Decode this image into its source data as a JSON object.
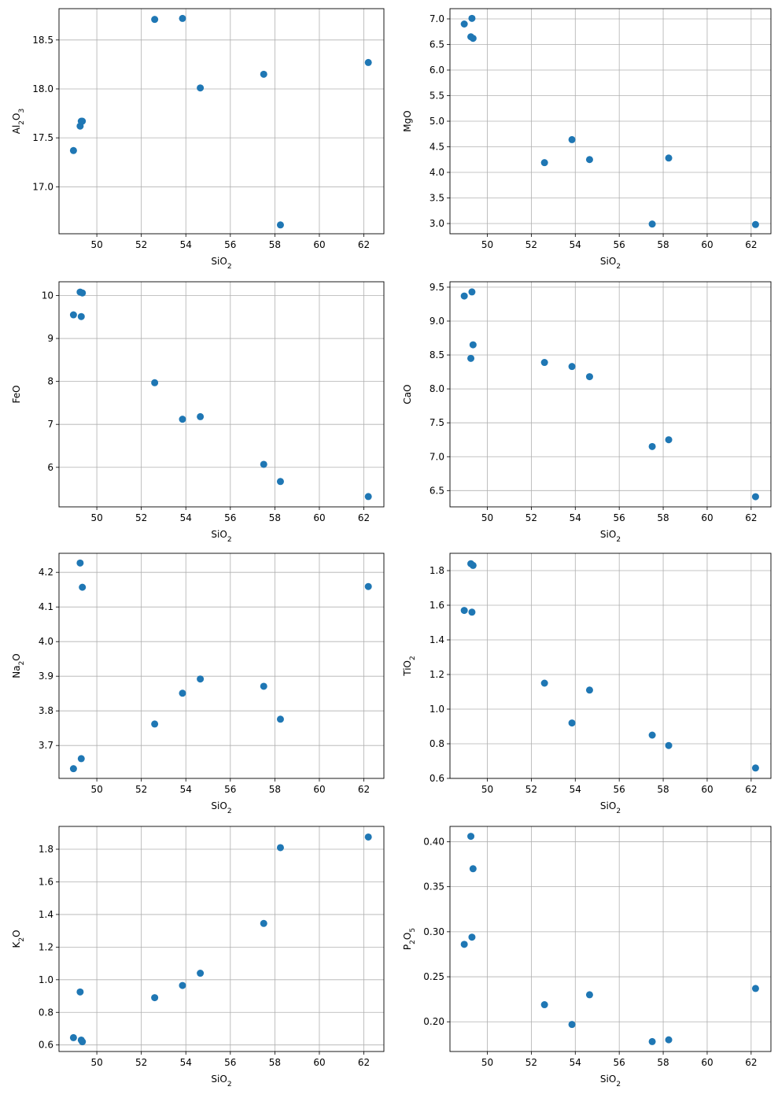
{
  "chart_data": [
    {
      "type": "scatter",
      "xlabel": "SiO₂",
      "ylabel": "Al₂O₃",
      "xlim": [
        48.3,
        62.9
      ],
      "ylim": [
        16.52,
        18.82
      ],
      "xticks": [
        50,
        52,
        54,
        56,
        58,
        60,
        62
      ],
      "yticks": [
        17.0,
        17.5,
        18.0,
        18.5
      ],
      "xtick_labels": [
        "50",
        "52",
        "54",
        "56",
        "58",
        "60",
        "62"
      ],
      "ytick_labels": [
        "17.0",
        "17.5",
        "18.0",
        "18.5"
      ],
      "grid": true,
      "series": [
        {
          "x": [
            48.95,
            49.25,
            49.3,
            49.35,
            52.6,
            53.85,
            54.65,
            57.5,
            58.25,
            62.2
          ],
          "y": [
            17.37,
            17.62,
            17.67,
            17.67,
            18.71,
            18.72,
            18.01,
            18.15,
            16.61,
            18.27
          ],
          "color": "#1f77b4"
        }
      ]
    },
    {
      "type": "scatter",
      "xlabel": "SiO₂",
      "ylabel": "MgO",
      "xlim": [
        48.3,
        62.9
      ],
      "ylim": [
        2.8,
        7.2
      ],
      "xticks": [
        50,
        52,
        54,
        56,
        58,
        60,
        62
      ],
      "yticks": [
        3.0,
        3.5,
        4.0,
        4.5,
        5.0,
        5.5,
        6.0,
        6.5,
        7.0
      ],
      "xtick_labels": [
        "50",
        "52",
        "54",
        "56",
        "58",
        "60",
        "62"
      ],
      "ytick_labels": [
        "3.0",
        "3.5",
        "4.0",
        "4.5",
        "5.0",
        "5.5",
        "6.0",
        "6.5",
        "7.0"
      ],
      "grid": true,
      "series": [
        {
          "x": [
            48.95,
            49.25,
            49.3,
            49.35,
            52.6,
            53.85,
            54.65,
            57.5,
            58.25,
            62.2
          ],
          "y": [
            6.9,
            6.65,
            7.01,
            6.62,
            4.19,
            4.64,
            4.25,
            2.99,
            4.28,
            2.98
          ],
          "color": "#1f77b4"
        }
      ]
    },
    {
      "type": "scatter",
      "xlabel": "SiO₂",
      "ylabel": "FeO",
      "xlim": [
        48.3,
        62.9
      ],
      "ylim": [
        5.08,
        10.32
      ],
      "xticks": [
        50,
        52,
        54,
        56,
        58,
        60,
        62
      ],
      "yticks": [
        6,
        7,
        8,
        9,
        10
      ],
      "xtick_labels": [
        "50",
        "52",
        "54",
        "56",
        "58",
        "60",
        "62"
      ],
      "ytick_labels": [
        "6",
        "7",
        "8",
        "9",
        "10"
      ],
      "grid": true,
      "series": [
        {
          "x": [
            48.95,
            49.25,
            49.3,
            49.35,
            52.6,
            53.85,
            54.65,
            57.5,
            58.25,
            62.2
          ],
          "y": [
            9.55,
            10.08,
            9.51,
            10.06,
            7.97,
            7.12,
            7.18,
            6.07,
            5.67,
            5.32
          ],
          "color": "#1f77b4"
        }
      ]
    },
    {
      "type": "scatter",
      "xlabel": "SiO₂",
      "ylabel": "CaO",
      "xlim": [
        48.3,
        62.9
      ],
      "ylim": [
        6.26,
        9.58
      ],
      "xticks": [
        50,
        52,
        54,
        56,
        58,
        60,
        62
      ],
      "yticks": [
        6.5,
        7.0,
        7.5,
        8.0,
        8.5,
        9.0,
        9.5
      ],
      "xtick_labels": [
        "50",
        "52",
        "54",
        "56",
        "58",
        "60",
        "62"
      ],
      "ytick_labels": [
        "6.5",
        "7.0",
        "7.5",
        "8.0",
        "8.5",
        "9.0",
        "9.5"
      ],
      "grid": true,
      "series": [
        {
          "x": [
            48.95,
            49.25,
            49.3,
            49.35,
            52.6,
            53.85,
            54.65,
            57.5,
            58.25,
            62.2
          ],
          "y": [
            9.37,
            8.45,
            9.43,
            8.65,
            8.39,
            8.33,
            8.18,
            7.15,
            7.25,
            6.41
          ],
          "color": "#1f77b4"
        }
      ]
    },
    {
      "type": "scatter",
      "xlabel": "SiO₂",
      "ylabel": "Na₂O",
      "xlim": [
        48.3,
        62.9
      ],
      "ylim": [
        3.605,
        4.255
      ],
      "xticks": [
        50,
        52,
        54,
        56,
        58,
        60,
        62
      ],
      "yticks": [
        3.7,
        3.8,
        3.9,
        4.0,
        4.1,
        4.2
      ],
      "xtick_labels": [
        "50",
        "52",
        "54",
        "56",
        "58",
        "60",
        "62"
      ],
      "ytick_labels": [
        "3.7",
        "3.8",
        "3.9",
        "4.0",
        "4.1",
        "4.2"
      ],
      "grid": true,
      "series": [
        {
          "x": [
            48.95,
            49.25,
            49.3,
            49.35,
            52.6,
            53.85,
            54.65,
            57.5,
            58.25,
            62.2
          ],
          "y": [
            3.633,
            4.227,
            3.662,
            4.157,
            3.762,
            3.851,
            3.892,
            3.871,
            3.776,
            4.159
          ],
          "color": "#1f77b4"
        }
      ]
    },
    {
      "type": "scatter",
      "xlabel": "SiO₂",
      "ylabel": "TiO₂",
      "xlim": [
        48.3,
        62.9
      ],
      "ylim": [
        0.6,
        1.9
      ],
      "xticks": [
        50,
        52,
        54,
        56,
        58,
        60,
        62
      ],
      "yticks": [
        0.6,
        0.8,
        1.0,
        1.2,
        1.4,
        1.6,
        1.8
      ],
      "xtick_labels": [
        "50",
        "52",
        "54",
        "56",
        "58",
        "60",
        "62"
      ],
      "ytick_labels": [
        "0.6",
        "0.8",
        "1.0",
        "1.2",
        "1.4",
        "1.6",
        "1.8"
      ],
      "grid": true,
      "series": [
        {
          "x": [
            48.95,
            49.25,
            49.3,
            49.35,
            52.6,
            53.85,
            54.65,
            57.5,
            58.25,
            62.2
          ],
          "y": [
            1.57,
            1.84,
            1.56,
            1.83,
            1.15,
            0.92,
            1.11,
            0.85,
            0.79,
            0.66
          ],
          "color": "#1f77b4"
        }
      ]
    },
    {
      "type": "scatter",
      "xlabel": "SiO₂",
      "ylabel": "K₂O",
      "xlim": [
        48.3,
        62.9
      ],
      "ylim": [
        0.56,
        1.94
      ],
      "xticks": [
        50,
        52,
        54,
        56,
        58,
        60,
        62
      ],
      "yticks": [
        0.6,
        0.8,
        1.0,
        1.2,
        1.4,
        1.6,
        1.8
      ],
      "xtick_labels": [
        "50",
        "52",
        "54",
        "56",
        "58",
        "60",
        "62"
      ],
      "ytick_labels": [
        "0.6",
        "0.8",
        "1.0",
        "1.2",
        "1.4",
        "1.6",
        "1.8"
      ],
      "grid": true,
      "series": [
        {
          "x": [
            48.95,
            49.25,
            49.3,
            49.35,
            52.6,
            53.85,
            54.65,
            57.5,
            58.25,
            62.2
          ],
          "y": [
            0.645,
            0.925,
            0.63,
            0.62,
            0.89,
            0.965,
            1.04,
            1.345,
            1.81,
            1.875
          ],
          "color": "#1f77b4"
        }
      ]
    },
    {
      "type": "scatter",
      "xlabel": "SiO₂",
      "ylabel": "P₂O₅",
      "xlim": [
        48.3,
        62.9
      ],
      "ylim": [
        0.167,
        0.417
      ],
      "xticks": [
        50,
        52,
        54,
        56,
        58,
        60,
        62
      ],
      "yticks": [
        0.2,
        0.25,
        0.3,
        0.35,
        0.4
      ],
      "xtick_labels": [
        "50",
        "52",
        "54",
        "56",
        "58",
        "60",
        "62"
      ],
      "ytick_labels": [
        "0.20",
        "0.25",
        "0.30",
        "0.35",
        "0.40"
      ],
      "grid": true,
      "series": [
        {
          "x": [
            48.95,
            49.25,
            49.3,
            49.35,
            52.6,
            53.85,
            54.65,
            57.5,
            58.25,
            62.2
          ],
          "y": [
            0.286,
            0.406,
            0.294,
            0.37,
            0.219,
            0.197,
            0.23,
            0.178,
            0.18,
            0.237
          ],
          "color": "#1f77b4"
        }
      ]
    }
  ]
}
